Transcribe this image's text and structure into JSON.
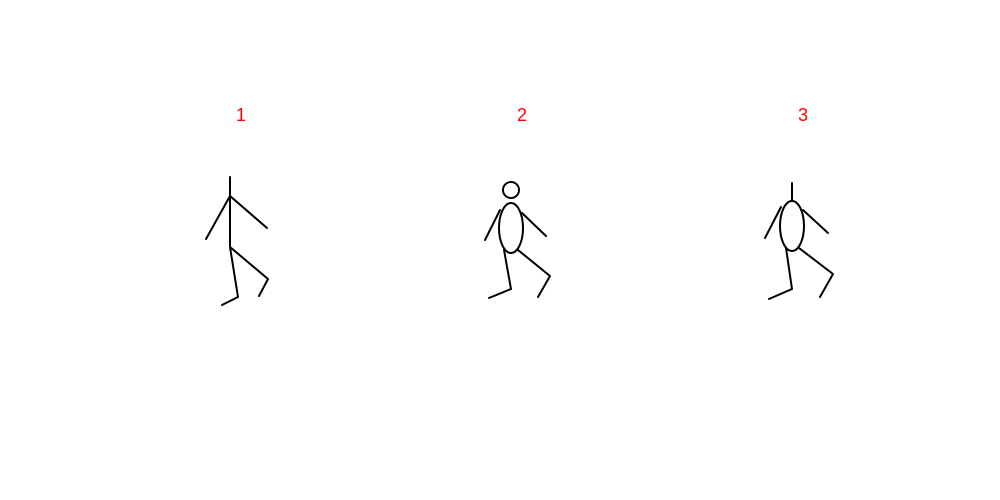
{
  "label_color": "#ff0000",
  "stroke_color": "#000000",
  "figures": [
    {
      "label": "1",
      "style": "stick"
    },
    {
      "label": "2",
      "style": "head-and-oval-body"
    },
    {
      "label": "3",
      "style": "oval-body-with-neck"
    }
  ]
}
